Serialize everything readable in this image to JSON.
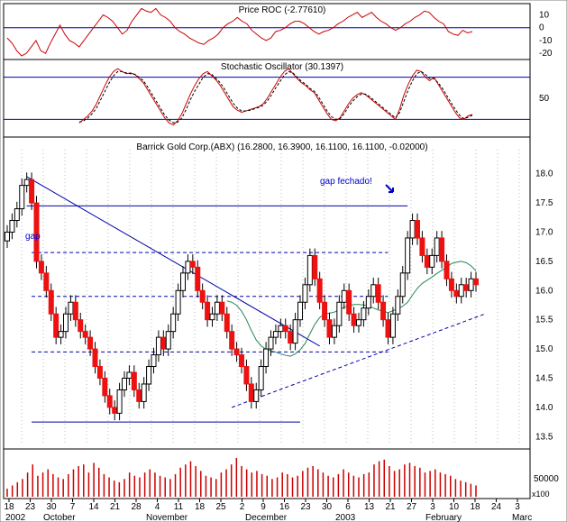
{
  "chart_data": [
    {
      "type": "line",
      "title": "Price ROC (-2.77610)",
      "yticks": [
        10,
        0,
        -10,
        -20
      ],
      "ylim": [
        -22,
        16
      ],
      "reference_line": 0,
      "series": [
        {
          "values": [
            -8,
            -12,
            -18,
            -22,
            -20,
            -15,
            -10,
            -18,
            -20,
            -12,
            -5,
            2,
            -5,
            -10,
            -12,
            -15,
            -10,
            -5,
            0,
            5,
            10,
            8,
            5,
            0,
            -5,
            -2,
            5,
            10,
            15,
            13,
            12,
            15,
            10,
            8,
            5,
            0,
            -3,
            -5,
            -8,
            -10,
            -12,
            -13,
            -10,
            -8,
            -5,
            0,
            3,
            5,
            8,
            5,
            3,
            -2,
            -5,
            -8,
            -10,
            -8,
            -3,
            -2,
            0,
            3,
            5,
            5,
            3,
            0,
            -3,
            -5,
            -3,
            -2,
            0,
            3,
            5,
            8,
            10,
            12,
            8,
            10,
            12,
            8,
            5,
            3,
            0,
            -2,
            0,
            3,
            5,
            8,
            10,
            13,
            12,
            8,
            5,
            3,
            -3,
            -5,
            -6,
            -2,
            -4,
            -3
          ]
        }
      ]
    },
    {
      "type": "line",
      "title": "Stochastic Oscillator (30.1397)",
      "yticks": [
        50
      ],
      "ylim": [
        0,
        100
      ],
      "reference_lines": [
        20,
        80
      ],
      "series": [
        {
          "values": [
            15,
            20,
            25,
            32,
            42,
            55,
            68,
            80,
            88,
            92,
            88,
            85,
            86,
            84,
            78,
            72,
            62,
            52,
            42,
            32,
            22,
            15,
            12,
            18,
            28,
            42,
            56,
            68,
            78,
            85,
            88,
            82,
            76,
            68,
            58,
            48,
            38,
            33,
            30,
            32,
            34,
            36,
            38,
            42,
            50,
            60,
            70,
            80,
            88,
            92,
            85,
            78,
            72,
            68,
            62,
            58,
            48,
            38,
            28,
            20,
            18,
            22,
            32,
            42,
            50,
            55,
            58,
            55,
            50,
            45,
            40,
            35,
            30,
            25,
            20,
            35,
            55,
            70,
            82,
            90,
            88,
            80,
            75,
            80,
            70,
            60,
            50,
            40,
            30,
            22,
            20,
            25,
            27
          ]
        },
        {
          "values": [
            16,
            18,
            22,
            28,
            36,
            48,
            60,
            72,
            82,
            88,
            88,
            86,
            85,
            84,
            80,
            75,
            66,
            56,
            46,
            36,
            26,
            19,
            15,
            16,
            22,
            34,
            48,
            60,
            70,
            80,
            85,
            84,
            78,
            72,
            63,
            53,
            43,
            36,
            32,
            32,
            33,
            35,
            37,
            40,
            46,
            55,
            65,
            74,
            83,
            88,
            86,
            80,
            74,
            70,
            64,
            60,
            52,
            42,
            32,
            24,
            20,
            21,
            28,
            38,
            46,
            52,
            56,
            56,
            52,
            47,
            42,
            37,
            32,
            27,
            22,
            30,
            46,
            62,
            75,
            85,
            88,
            84,
            78,
            78,
            72,
            64,
            54,
            44,
            34,
            26,
            21,
            23,
            26
          ]
        }
      ]
    },
    {
      "type": "candlestick",
      "title": "Barrick Gold Corp.(ABX) (16.2800, 16.3900, 16.1100, 16.1100, -0.02000)",
      "ylim": [
        13.35,
        18.35
      ],
      "yticks": [
        13.5,
        14.0,
        14.5,
        15.0,
        15.5,
        16.0,
        16.5,
        17.0,
        17.5,
        18.0
      ],
      "annotations": [
        "gap",
        "gap fechado!"
      ],
      "series": [
        {
          "name": "closes",
          "values": [
            17.0,
            17.2,
            17.4,
            17.8,
            17.9,
            17.5,
            16.5,
            16.3,
            16.0,
            15.6,
            15.2,
            15.3,
            15.6,
            15.8,
            15.5,
            15.3,
            15.2,
            15.0,
            14.7,
            14.5,
            14.2,
            14.0,
            13.9,
            14.3,
            14.5,
            14.6,
            14.3,
            14.1,
            14.4,
            14.7,
            14.9,
            15.2,
            15.0,
            15.3,
            15.6,
            16.0,
            16.3,
            16.5,
            16.4,
            16.0,
            15.8,
            15.5,
            15.6,
            15.8,
            15.6,
            15.3,
            15.0,
            14.9,
            14.7,
            14.4,
            14.1,
            14.3,
            14.7,
            15.0,
            15.2,
            15.3,
            15.4,
            15.3,
            15.1,
            15.5,
            15.8,
            16.1,
            16.6,
            16.2,
            15.8,
            15.5,
            15.2,
            15.4,
            15.8,
            16.0,
            15.6,
            15.4,
            15.5,
            15.7,
            15.9,
            16.1,
            15.8,
            15.5,
            15.2,
            15.6,
            15.9,
            16.3,
            16.9,
            17.2,
            16.9,
            16.6,
            16.4,
            16.6,
            16.9,
            16.5,
            16.2,
            16.0,
            15.9,
            16.1,
            16.0,
            16.2,
            16.1
          ]
        }
      ],
      "gap_line_price": 17.45,
      "trendline_levels": [
        16.65,
        15.9,
        14.95,
        13.75
      ]
    },
    {
      "type": "bar",
      "title": "",
      "ylabel": "",
      "yticks": [
        50000
      ],
      "tick_labels": {
        "x100": "x100"
      },
      "series": [
        {
          "values": [
            10,
            14,
            18,
            22,
            30,
            40,
            26,
            30,
            34,
            28,
            24,
            22,
            28,
            34,
            38,
            40,
            30,
            42,
            36,
            28,
            24,
            20,
            18,
            22,
            30,
            26,
            24,
            30,
            34,
            30,
            26,
            24,
            22,
            28,
            36,
            40,
            44,
            38,
            32,
            26,
            24,
            22,
            30,
            34,
            40,
            48,
            38,
            34,
            30,
            32,
            28,
            26,
            22,
            24,
            30,
            28,
            24,
            26,
            32,
            36,
            38,
            34,
            30,
            26,
            24,
            28,
            34,
            30,
            26,
            24,
            28,
            30,
            40,
            44,
            46,
            38,
            32,
            34,
            40,
            42,
            38,
            36,
            30,
            32,
            34,
            30,
            28,
            26,
            22,
            20,
            18,
            16,
            14
          ]
        }
      ]
    }
  ],
  "x_axis": {
    "tick_labels": [
      "18",
      "23",
      "30",
      "7",
      "14",
      "21",
      "28",
      "4",
      "11",
      "18",
      "25",
      "2",
      "9",
      "16",
      "23",
      "30",
      "6",
      "13",
      "21",
      "27",
      "3",
      "10",
      "18",
      "24",
      "3"
    ],
    "month_labels": [
      "2002",
      "October",
      "November",
      "December",
      "2003",
      "February",
      "Marc"
    ]
  }
}
